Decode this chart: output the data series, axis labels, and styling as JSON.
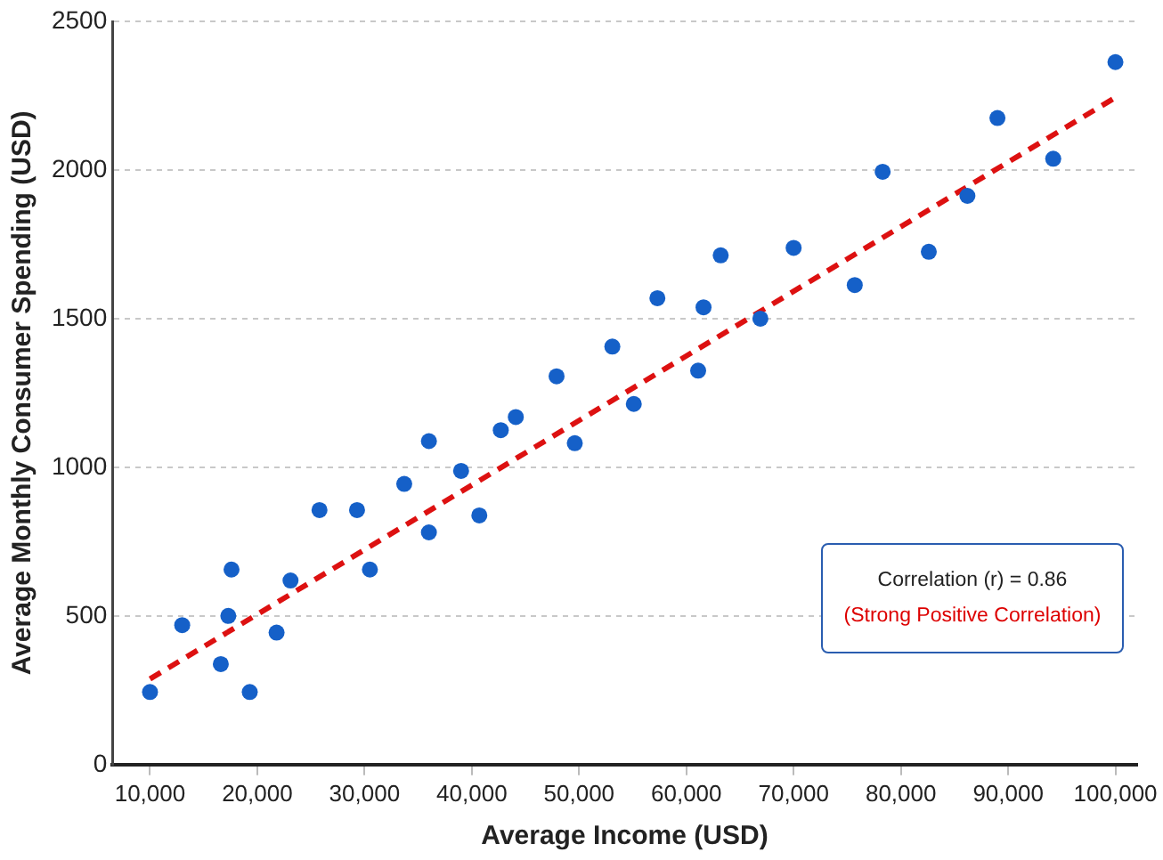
{
  "chart_data": {
    "type": "scatter",
    "xlabel": "Average Income (USD)",
    "ylabel": "Average Monthly Consumer Spending (USD)",
    "xlim": [
      6500,
      102000
    ],
    "xticks": [
      {
        "value": 10000,
        "label": "10,000"
      },
      {
        "value": 20000,
        "label": "20,000"
      },
      {
        "value": 30000,
        "label": "30,000"
      },
      {
        "value": 40000,
        "label": "40,000"
      },
      {
        "value": 50000,
        "label": "50,000"
      },
      {
        "value": 60000,
        "label": "60,000"
      },
      {
        "value": 70000,
        "label": "70,000"
      },
      {
        "value": 80000,
        "label": "80,000"
      },
      {
        "value": 90000,
        "label": "90,000"
      },
      {
        "value": 100000,
        "label": "100,000"
      }
    ],
    "ylim": [
      0,
      2500
    ],
    "yticks": [
      0,
      500,
      1000,
      1500,
      2000,
      2500
    ],
    "grid": "y",
    "legend": false,
    "marker": "circle",
    "series": [
      {
        "color": "#1560c8",
        "x": [
          10000,
          13000,
          16600,
          17300,
          17600,
          19300,
          21800,
          23100,
          25800,
          29300,
          30500,
          33700,
          36000,
          36000,
          39000,
          40700,
          42700,
          44100,
          47900,
          49600,
          53100,
          55100,
          57300,
          61100,
          61600,
          63200,
          66900,
          70000,
          75700,
          78300,
          82600,
          86200,
          89000,
          94200,
          100000
        ],
        "values": [
          244,
          469,
          338,
          500,
          656,
          244,
          444,
          619,
          856,
          856,
          656,
          944,
          781,
          1088,
          988,
          838,
          1125,
          1169,
          1306,
          1081,
          1406,
          1213,
          1569,
          1325,
          1538,
          1713,
          1500,
          1738,
          1613,
          1994,
          1725,
          1913,
          2175,
          2038,
          2363
        ]
      },
      {
        "type": "line",
        "color": "#dd1111",
        "line_style": "dashed",
        "marker": "none",
        "x": [
          10000,
          100000
        ],
        "values": [
          288,
          2244
        ]
      }
    ],
    "annotations": [
      "Correlation (r) = 0.86",
      "(Strong Positive Correlation)"
    ]
  }
}
